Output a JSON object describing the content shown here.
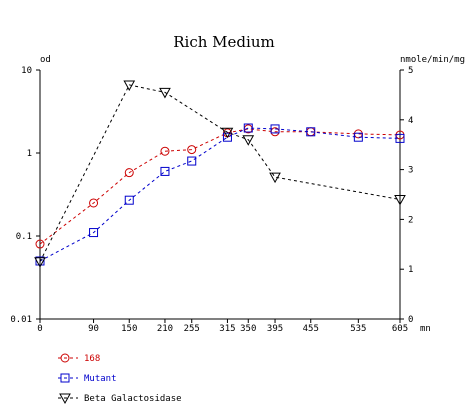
{
  "chart_data": {
    "type": "line",
    "title": "Rich Medium",
    "left_axis": {
      "label": "od",
      "scale": "log",
      "range": [
        0.01,
        10
      ],
      "ticks": [
        "0.01",
        "0.1",
        "1",
        "10"
      ],
      "tick_values": [
        0.01,
        0.1,
        1,
        10
      ]
    },
    "right_axis": {
      "label": "nmole/min/mg",
      "scale": "linear",
      "range": [
        0,
        5
      ],
      "ticks": [
        "0",
        "1",
        "2",
        "3",
        "4",
        "5"
      ],
      "tick_values": [
        0,
        1,
        2,
        3,
        4,
        5
      ]
    },
    "x_axis": {
      "unit_label": "mn",
      "range": [
        0,
        605
      ],
      "ticks": [
        "0",
        "90",
        "150",
        "210",
        "255",
        "315",
        "350",
        "395",
        "455",
        "535",
        "605"
      ],
      "tick_values": [
        0,
        90,
        150,
        210,
        255,
        315,
        350,
        395,
        455,
        535,
        605
      ]
    },
    "series": [
      {
        "name": "168",
        "axis": "left",
        "color": "#cc0000",
        "marker": "circle",
        "x": [
          0,
          90,
          150,
          210,
          255,
          315,
          350,
          395,
          455,
          535,
          605
        ],
        "y": [
          0.08,
          0.25,
          0.58,
          1.05,
          1.1,
          1.75,
          1.95,
          1.8,
          1.8,
          1.7,
          1.65
        ]
      },
      {
        "name": "Mutant",
        "axis": "left",
        "color": "#0000cc",
        "marker": "square",
        "x": [
          0,
          90,
          150,
          210,
          255,
          315,
          350,
          395,
          455,
          535,
          605
        ],
        "y": [
          0.05,
          0.11,
          0.27,
          0.6,
          0.8,
          1.55,
          2.0,
          1.95,
          1.8,
          1.55,
          1.5
        ]
      },
      {
        "name": "Beta Galactosidase",
        "axis": "right",
        "color": "#000000",
        "marker": "triangle-down",
        "x": [
          0,
          150,
          210,
          315,
          350,
          395,
          605
        ],
        "y": [
          1.15,
          4.7,
          4.55,
          3.75,
          3.6,
          2.85,
          2.4
        ]
      }
    ],
    "legend": {
      "placement": "bottom-left"
    },
    "grid": false
  }
}
